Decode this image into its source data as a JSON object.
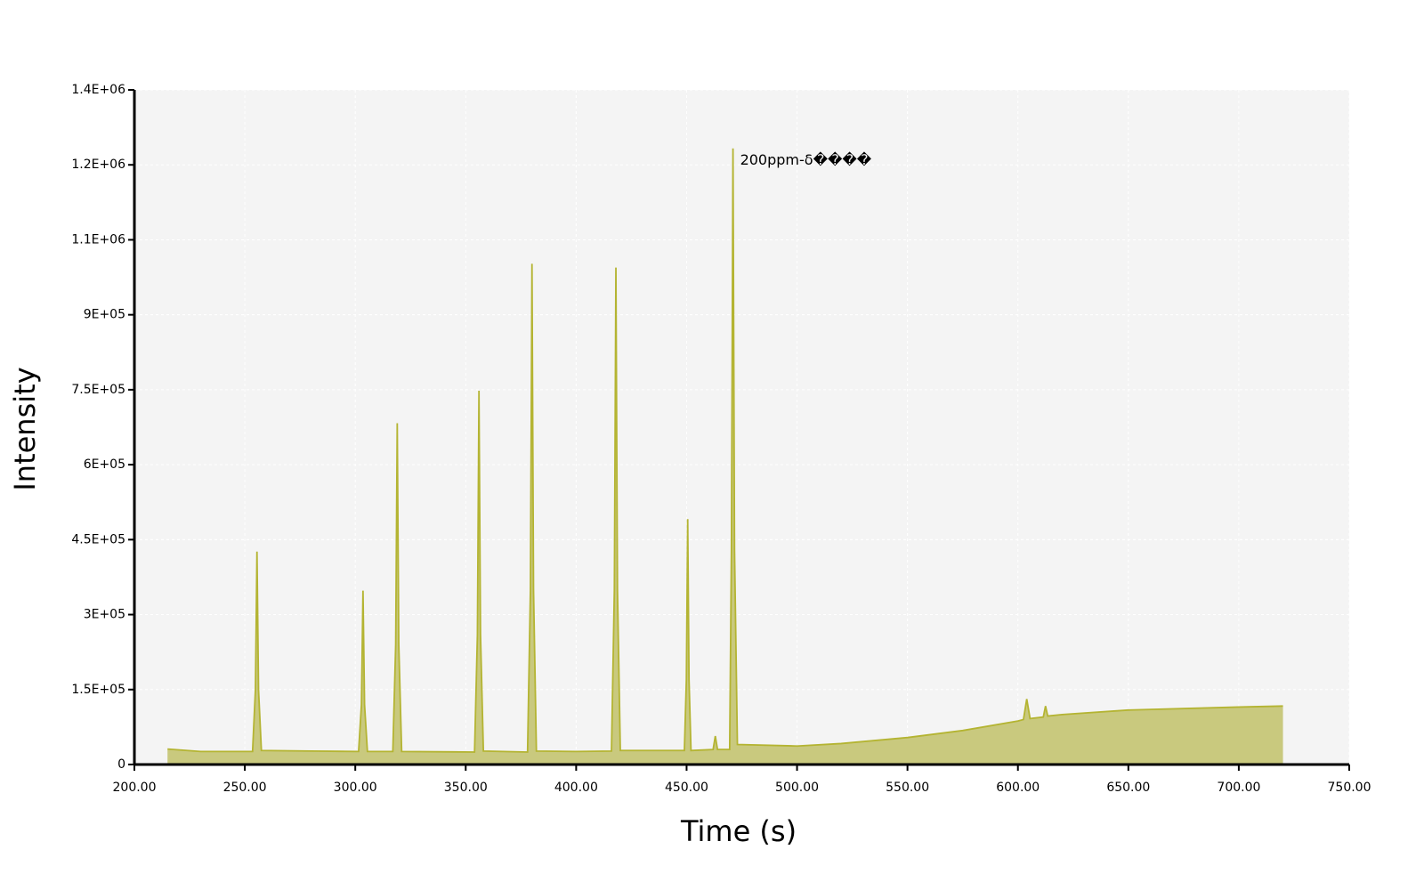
{
  "chart_data": {
    "type": "area",
    "xlabel": "Time (s)",
    "ylabel": "Intensity",
    "annotation": "200ppm-δ����",
    "color": "#b4b432",
    "fill": "#c9c97e",
    "grid": true,
    "xlim": [
      200,
      750
    ],
    "xticks": [
      {
        "value": 200,
        "label": "200.00"
      },
      {
        "value": 250,
        "label": "250.00"
      },
      {
        "value": 300,
        "label": "300.00"
      },
      {
        "value": 350,
        "label": "350.00"
      },
      {
        "value": 400,
        "label": "400.00"
      },
      {
        "value": 450,
        "label": "450.00"
      },
      {
        "value": 500,
        "label": "500.00"
      },
      {
        "value": 550,
        "label": "550.00"
      },
      {
        "value": 600,
        "label": "600.00"
      },
      {
        "value": 650,
        "label": "650.00"
      },
      {
        "value": 700,
        "label": "700.00"
      },
      {
        "value": 750,
        "label": "750.00"
      }
    ],
    "ylim": [
      0,
      1350000
    ],
    "yticks": [
      0,
      {
        "value": 150000,
        "label": "1.5E+05"
      },
      {
        "value": 300000,
        "label": "3E+05"
      },
      {
        "value": 450000,
        "label": "4.5E+05"
      },
      {
        "value": 600000,
        "label": "6E+05"
      },
      {
        "value": 750000,
        "label": "7.5E+05"
      },
      {
        "value": 900000,
        "label": "9E+05"
      },
      {
        "value": 1050000,
        "label": "1.1E+06"
      },
      {
        "value": 1200000,
        "label": "1.2E+06"
      },
      {
        "value": 1350000,
        "label": "1.4E+06"
      }
    ],
    "x": [
      215,
      230,
      253.5,
      254.8,
      255.5,
      256.2,
      257.5,
      280,
      301.5,
      302.8,
      303.5,
      304.2,
      305.5,
      317,
      318.3,
      319,
      319.7,
      321,
      354,
      355.3,
      356,
      356.7,
      358,
      378,
      379.3,
      380,
      380.7,
      382,
      400,
      416,
      417.3,
      418,
      418.7,
      420,
      449,
      449.9,
      450.5,
      451.1,
      452,
      462,
      463,
      464,
      469.5,
      470.3,
      471,
      471.7,
      473,
      500,
      520,
      550,
      575,
      600,
      602.5,
      604,
      605.5,
      611.5,
      612.5,
      613.5,
      620,
      650,
      700,
      720
    ],
    "values": [
      31000,
      26000,
      26000,
      150000,
      426000,
      150000,
      28000,
      27000,
      26000,
      120000,
      348000,
      120000,
      26000,
      26000,
      240000,
      683000,
      240000,
      26000,
      25000,
      260000,
      748000,
      260000,
      27000,
      25000,
      350000,
      1002000,
      350000,
      27000,
      26000,
      27000,
      350000,
      994500,
      350000,
      28000,
      28000,
      170000,
      491000,
      170000,
      28000,
      30000,
      57000,
      30000,
      30000,
      430000,
      1233000,
      430000,
      40000,
      37000,
      42000,
      54000,
      68000,
      87000,
      90000,
      131000,
      92000,
      95000,
      117000,
      97000,
      100000,
      109000,
      115000,
      117000
    ]
  }
}
